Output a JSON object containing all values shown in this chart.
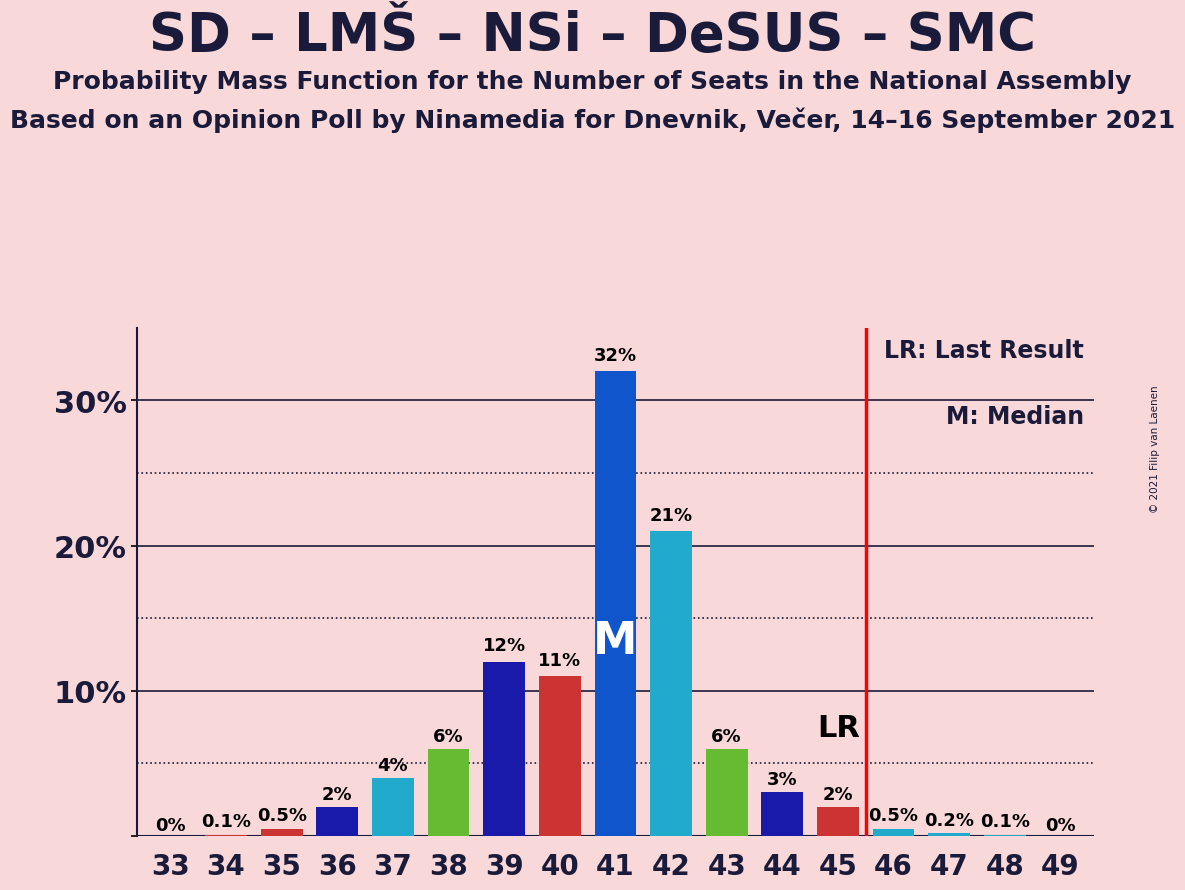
{
  "title": "SD – LMŠ – NSi – DeSUS – SMC",
  "subtitle1": "Probability Mass Function for the Number of Seats in the National Assembly",
  "subtitle2": "Based on an Opinion Poll by Ninamedia for Dnevnik, Večer, 14–16 September 2021",
  "copyright": "© 2021 Filip van Laenen",
  "categories": [
    33,
    34,
    35,
    36,
    37,
    38,
    39,
    40,
    41,
    42,
    43,
    44,
    45,
    46,
    47,
    48,
    49
  ],
  "values": [
    0.0,
    0.1,
    0.5,
    2.0,
    4.0,
    6.0,
    12.0,
    11.0,
    32.0,
    21.0,
    6.0,
    3.0,
    2.0,
    0.5,
    0.2,
    0.1,
    0.0
  ],
  "bar_colors": [
    "#cc3333",
    "#cc3333",
    "#cc3333",
    "#1a1aaa",
    "#22aacc",
    "#66bb33",
    "#1a1aaa",
    "#cc3333",
    "#1155cc",
    "#22aacc",
    "#66bb33",
    "#1a1aaa",
    "#cc3333",
    "#22aacc",
    "#22aacc",
    "#22aacc",
    "#22aacc"
  ],
  "label_texts": [
    "0%",
    "0.1%",
    "0.5%",
    "2%",
    "4%",
    "6%",
    "12%",
    "11%",
    "32%",
    "21%",
    "6%",
    "3%",
    "2%",
    "0.5%",
    "0.2%",
    "0.1%",
    "0%"
  ],
  "median_seat": 41,
  "median_label": "M",
  "lr_seat": 45.5,
  "lr_label": "LR",
  "background_color": "#f8d8d8",
  "title_fontsize": 38,
  "subtitle_fontsize": 18,
  "yticks": [
    0,
    10,
    20,
    30
  ],
  "ytick_labels": [
    "",
    "10%",
    "20%",
    "30%"
  ],
  "dotted_yticks": [
    5,
    15,
    25
  ],
  "solid_yticks": [
    10,
    20,
    30
  ],
  "ylim": [
    0,
    35
  ],
  "xlim": [
    32.4,
    49.6
  ],
  "bar_width": 0.75
}
